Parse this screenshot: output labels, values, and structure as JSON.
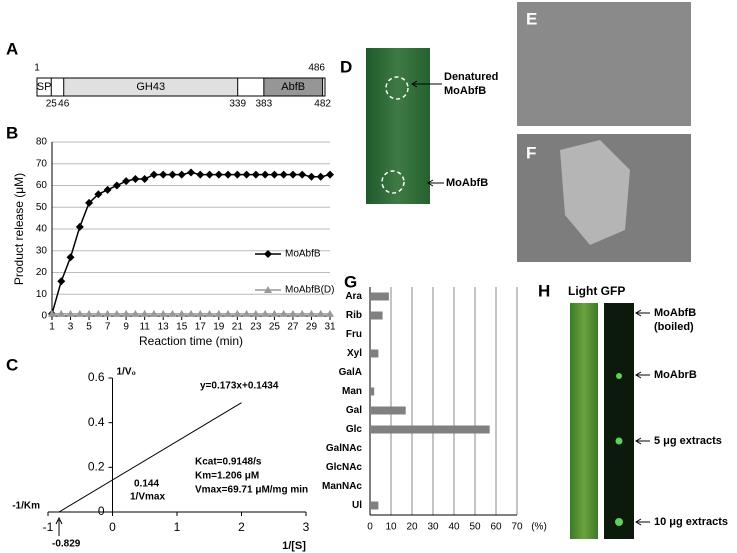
{
  "domain_diagram": {
    "panel": "A",
    "length": 486,
    "domains": [
      {
        "label": "SP",
        "start": 1,
        "end": 25,
        "color": "#ffffff"
      },
      {
        "label": "GH43",
        "start": 46,
        "end": 339,
        "color": "#e0e0e0"
      },
      {
        "label": "AbfB",
        "start": 383,
        "end": 482,
        "color": "#969696"
      }
    ]
  },
  "chart_data": [
    {
      "type": "line",
      "panel": "B",
      "ylabel": "Product release (μM)",
      "xlabel": "Reaction time (min)",
      "x": [
        1,
        2,
        3,
        4,
        5,
        6,
        7,
        8,
        9,
        10,
        11,
        12,
        13,
        14,
        15,
        16,
        17,
        18,
        19,
        20,
        21,
        22,
        23,
        24,
        25,
        26,
        27,
        28,
        29,
        30,
        31
      ],
      "xlim": [
        1,
        31
      ],
      "xticks": [
        1,
        3,
        5,
        7,
        9,
        11,
        13,
        15,
        17,
        19,
        21,
        23,
        25,
        27,
        29,
        31
      ],
      "ylim": [
        0,
        80
      ],
      "yticks": [
        0,
        10,
        20,
        30,
        40,
        50,
        60,
        70,
        80
      ],
      "grid": true,
      "legend": "right",
      "series": [
        {
          "name": "MoAbfB",
          "color": "#000000",
          "marker": "diamond",
          "values": [
            1,
            16,
            27,
            41,
            52,
            56,
            58,
            60,
            62,
            63,
            63,
            65,
            65,
            65,
            65,
            66,
            65,
            65,
            65,
            65,
            65,
            65,
            65,
            65,
            65,
            65,
            65,
            65,
            64,
            64,
            65
          ]
        },
        {
          "name": "MoAbfB(D)",
          "color": "#999999",
          "marker": "triangle",
          "values": [
            1,
            1,
            1,
            1,
            1,
            1,
            1,
            1,
            1,
            1,
            1,
            1,
            1,
            1,
            1,
            1,
            1,
            1,
            1,
            1,
            1,
            1,
            1,
            1,
            1,
            1,
            1,
            1,
            1,
            1,
            1
          ]
        }
      ]
    },
    {
      "type": "line",
      "panel": "C",
      "ylabel": "1/V₀",
      "xlabel": "1/[S]",
      "x": [
        -0.829,
        2
      ],
      "xlim": [
        -1,
        3
      ],
      "xticks": [
        -1,
        0,
        1,
        2,
        3
      ],
      "ylim": [
        0,
        0.6
      ],
      "yticks": [
        0,
        0.2,
        0.4,
        0.6
      ],
      "series": [
        {
          "color": "#000000",
          "values": [
            0,
            0.4894
          ]
        }
      ],
      "annotations": [
        "y=0.173x+0.1434",
        "Kcat=0.9148/s",
        "Km=1.206 μM",
        "Vmax=69.71 μM/mg min",
        "0.144",
        "1/Vmax",
        "-1/Km",
        "-0.829"
      ]
    },
    {
      "type": "bar",
      "orientation": "horizontal",
      "panel": "G",
      "xlabel": "(%)",
      "categories": [
        "Ara",
        "Rib",
        "Fru",
        "Xyl",
        "GalA",
        "Man",
        "Gal",
        "Glc",
        "GalNAc",
        "GlcNAc",
        "ManNAc",
        "Ul"
      ],
      "values": [
        9,
        6,
        0,
        4,
        0,
        2,
        17,
        57,
        0,
        0,
        0,
        4
      ],
      "color": "#808080",
      "xlim": [
        0,
        70
      ],
      "xticks": [
        0,
        10,
        20,
        30,
        40,
        50,
        60,
        70
      ],
      "grid": true
    }
  ],
  "leaf_panel": {
    "panel": "D",
    "labels": [
      [
        "Denatured",
        "MoAbfB"
      ],
      [
        "MoAbfB"
      ]
    ]
  },
  "sem_panels": [
    {
      "panel": "E"
    },
    {
      "panel": "F"
    }
  ],
  "gfp_panel": {
    "panel": "H",
    "header": "Light GFP",
    "labels": [
      [
        "MoAbfB",
        "(boiled)"
      ],
      [
        "MoAbrB"
      ],
      [
        "5 μg extracts"
      ],
      [
        "10 μg extracts"
      ]
    ]
  }
}
